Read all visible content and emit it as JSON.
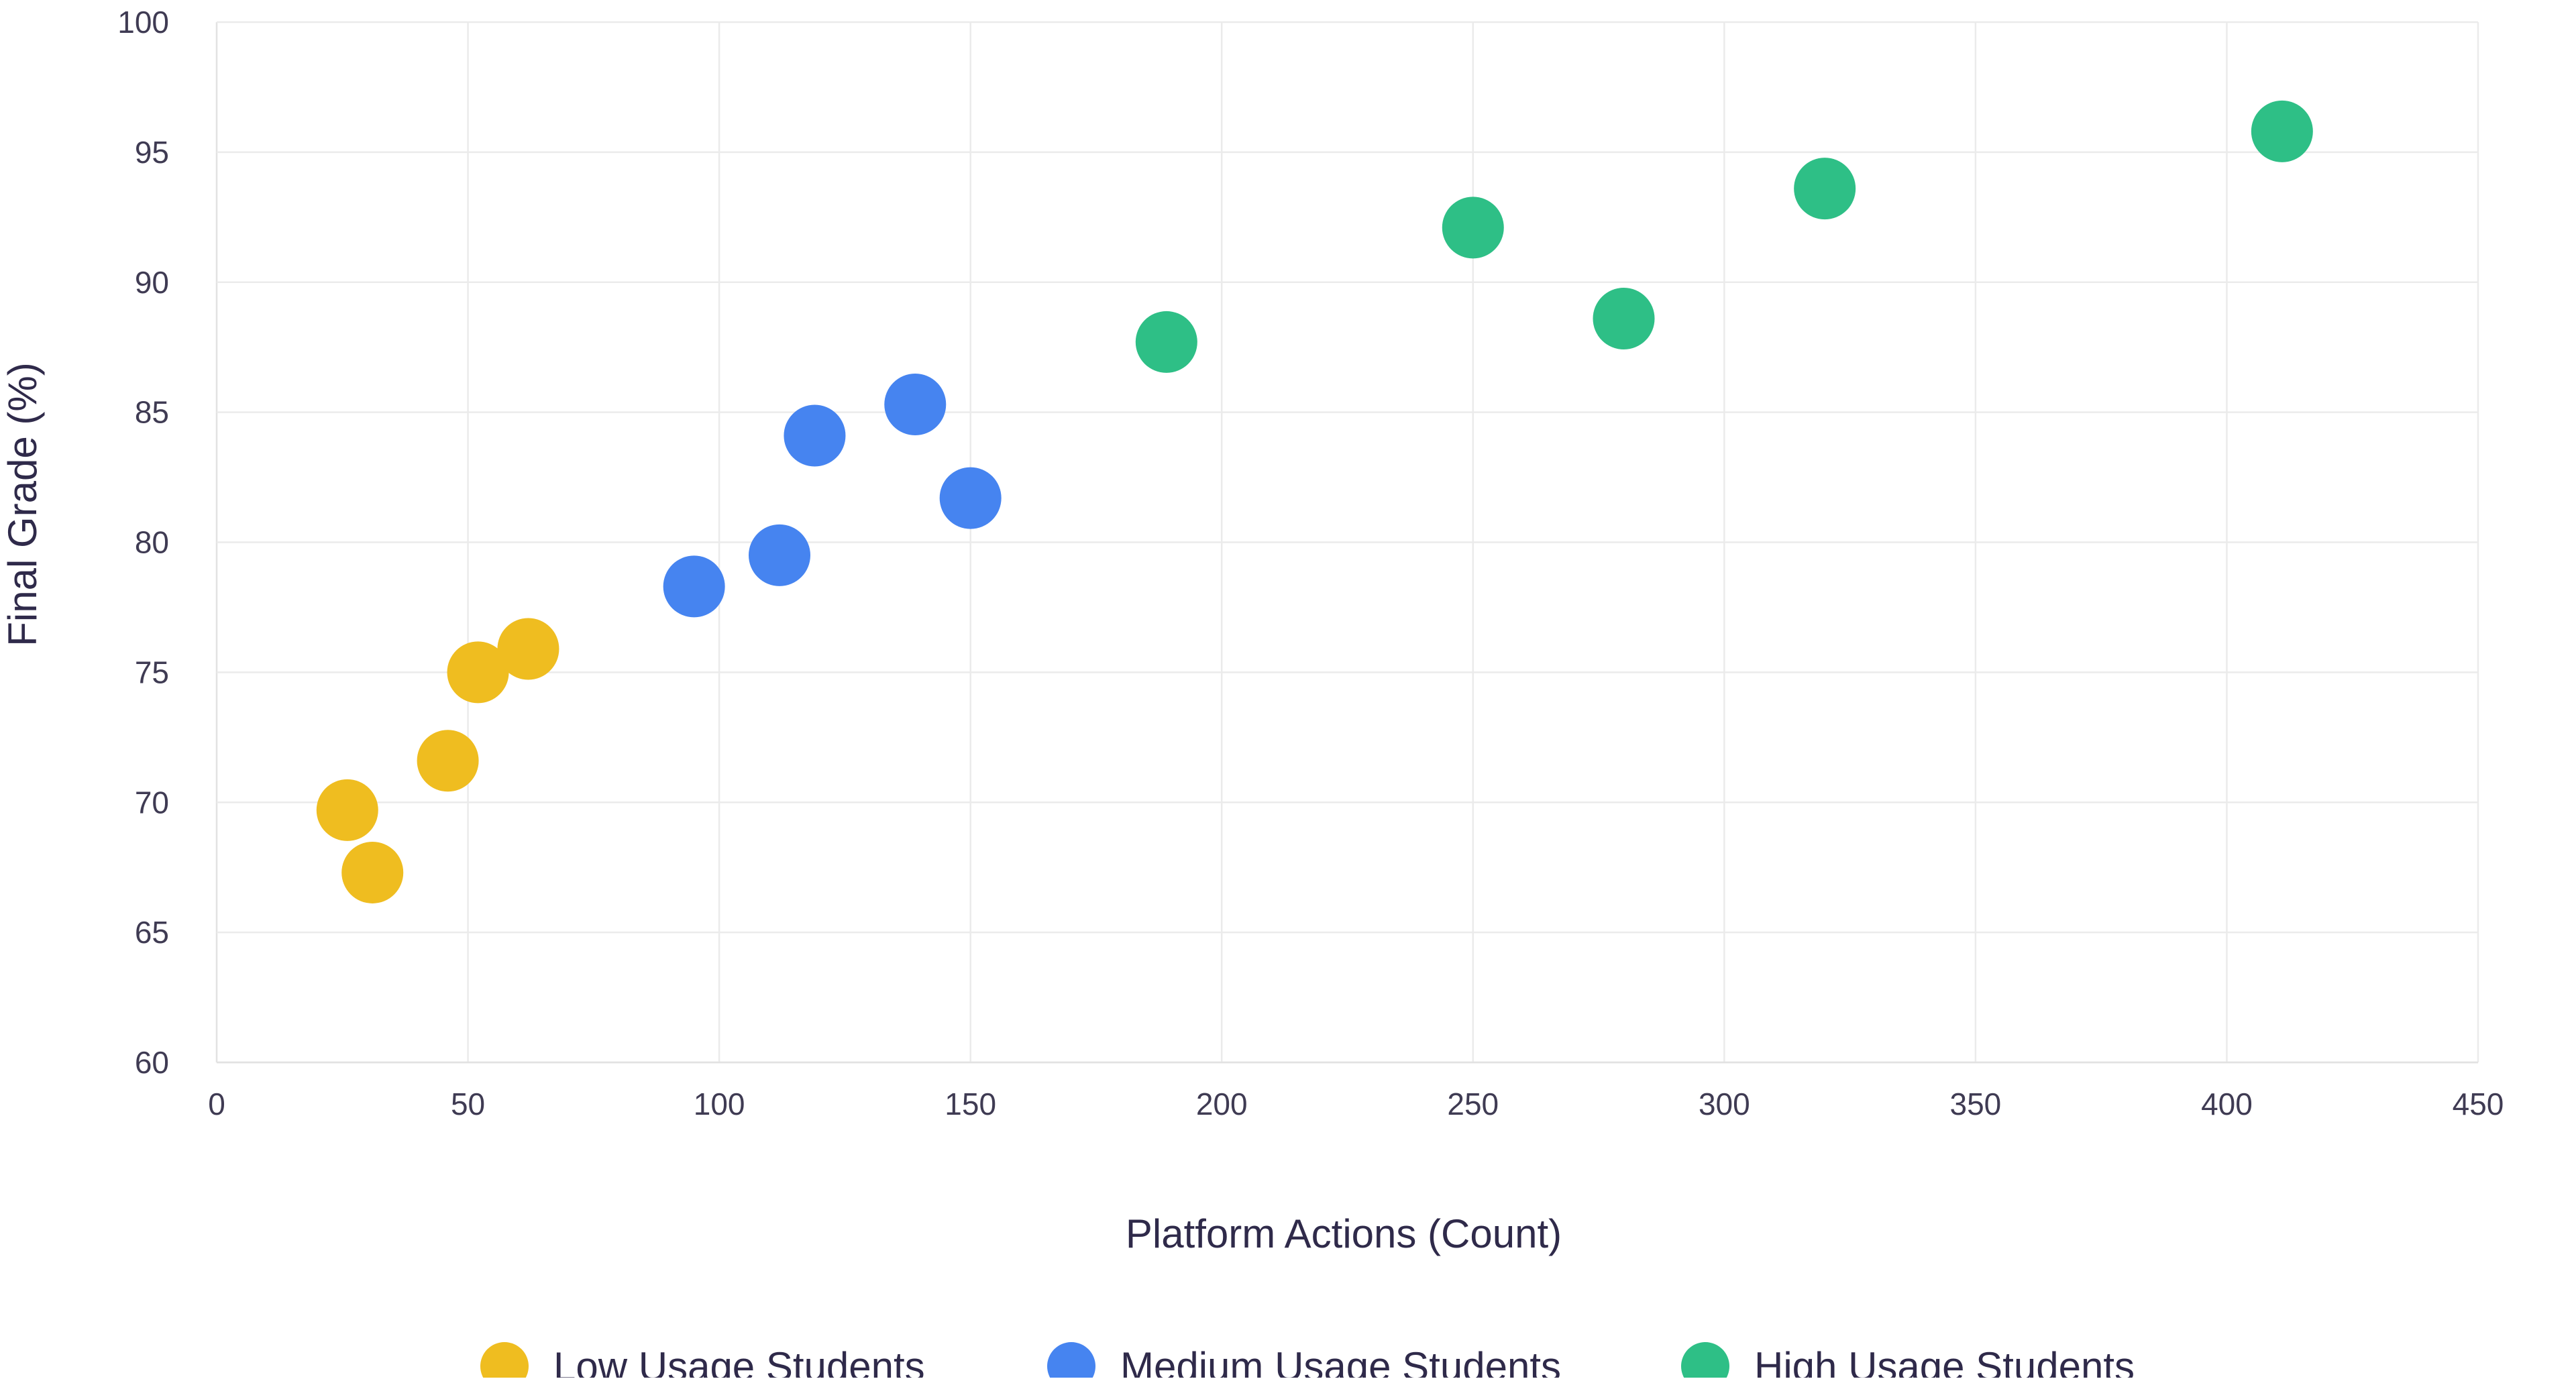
{
  "chart_data": {
    "type": "scatter",
    "title": "",
    "xlabel": "Platform Actions (Count)",
    "ylabel": "Final Grade (%)",
    "xlim": [
      0,
      450
    ],
    "ylim": [
      60,
      100
    ],
    "x_ticks": [
      0,
      50,
      100,
      150,
      200,
      250,
      300,
      350,
      400,
      450
    ],
    "y_ticks": [
      60,
      65,
      70,
      75,
      80,
      85,
      90,
      95,
      100
    ],
    "grid": true,
    "legend_position": "bottom",
    "series": [
      {
        "name": "Low Usage Students",
        "color": "#efbd20",
        "points": [
          {
            "x": 26,
            "y": 69.7
          },
          {
            "x": 31,
            "y": 67.3
          },
          {
            "x": 46,
            "y": 71.6
          },
          {
            "x": 52,
            "y": 75.0
          },
          {
            "x": 62,
            "y": 75.9
          }
        ]
      },
      {
        "name": "Medium Usage Students",
        "color": "#4684f0",
        "points": [
          {
            "x": 95,
            "y": 78.3
          },
          {
            "x": 112,
            "y": 79.5
          },
          {
            "x": 119,
            "y": 84.1
          },
          {
            "x": 139,
            "y": 85.3
          },
          {
            "x": 150,
            "y": 81.7
          }
        ]
      },
      {
        "name": "High Usage Students",
        "color": "#2ebf86",
        "points": [
          {
            "x": 189,
            "y": 87.7
          },
          {
            "x": 250,
            "y": 92.1
          },
          {
            "x": 280,
            "y": 88.6
          },
          {
            "x": 320,
            "y": 93.6
          },
          {
            "x": 411,
            "y": 95.8
          }
        ]
      }
    ]
  }
}
